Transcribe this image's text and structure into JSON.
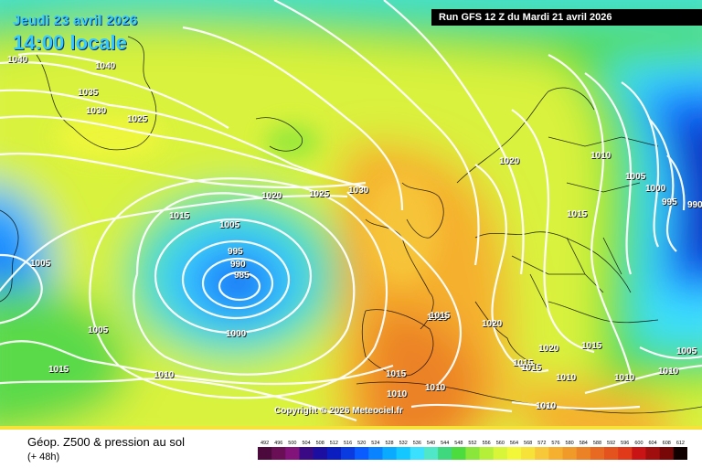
{
  "header": {
    "date_line": "Jeudi 23 avril 2026",
    "time_line": "14:00 locale",
    "run_info": "Run GFS 12 Z du Mardi 21 avril 2026",
    "copyright": "Copyright © 2026 Meteociel.fr"
  },
  "footer": {
    "title": "Géop. Z500 & pression au sol",
    "subtitle": "(+ 48h)"
  },
  "isobar_labels": [
    "1040",
    "1040",
    "1035",
    "1030",
    "1025",
    "1020",
    "1025",
    "1030",
    "1015",
    "1005",
    "1005",
    "995",
    "990",
    "985",
    "1000",
    "1005",
    "1015",
    "1010",
    "1020",
    "1020",
    "1010",
    "1005",
    "1000",
    "995",
    "990",
    "1015",
    "1015",
    "1020",
    "1015",
    "1015",
    "1015",
    "1015",
    "1010",
    "1010",
    "1005",
    "1010",
    "1015",
    "1010",
    "1010",
    "1010"
  ],
  "legend": {
    "values": [
      "492",
      "496",
      "500",
      "504",
      "508",
      "512",
      "516",
      "520",
      "524",
      "528",
      "532",
      "536",
      "540",
      "544",
      "548",
      "552",
      "556",
      "560",
      "564",
      "568",
      "572",
      "576",
      "580",
      "584",
      "588",
      "592",
      "596",
      "600",
      "604",
      "608",
      "612"
    ],
    "colors": [
      "#4b0a3b",
      "#6a0f55",
      "#82137a",
      "#3a0a85",
      "#1c0ea0",
      "#0c1dc0",
      "#0a3be0",
      "#0a5cff",
      "#0a83ff",
      "#0aaaff",
      "#14c8ff",
      "#3ce0ff",
      "#50e6c8",
      "#3fd87f",
      "#4ddc3d",
      "#8ae63a",
      "#b6ef3a",
      "#d8f53a",
      "#f2f73a",
      "#f7e23a",
      "#f7c83a",
      "#f5b02f",
      "#f09a2a",
      "#ec8226",
      "#e86a22",
      "#e4521e",
      "#e03a1a",
      "#c81414",
      "#a00e0e",
      "#780808",
      "#100000"
    ]
  }
}
